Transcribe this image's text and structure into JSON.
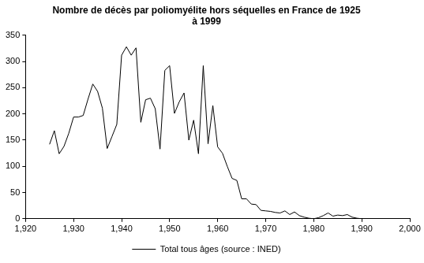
{
  "chart_data": {
    "type": "line",
    "title": [
      "Nombre de décès par poliomyélite hors séquelles en France de 1925",
      "à 1999"
    ],
    "x": [
      1925,
      1926,
      1927,
      1928,
      1929,
      1930,
      1931,
      1932,
      1933,
      1934,
      1935,
      1936,
      1937,
      1938,
      1939,
      1940,
      1941,
      1942,
      1943,
      1944,
      1945,
      1946,
      1947,
      1948,
      1949,
      1950,
      1951,
      1952,
      1953,
      1954,
      1955,
      1956,
      1957,
      1958,
      1959,
      1960,
      1961,
      1962,
      1963,
      1964,
      1965,
      1966,
      1967,
      1968,
      1969,
      1970,
      1971,
      1972,
      1973,
      1974,
      1975,
      1976,
      1977,
      1978,
      1979,
      1980,
      1981,
      1982,
      1983,
      1984,
      1985,
      1986,
      1987,
      1988,
      1989,
      1990,
      1991,
      1992,
      1993,
      1994,
      1995,
      1996,
      1997,
      1998,
      1999
    ],
    "series": [
      {
        "name": "Total tous âges (source : INED)",
        "color": "#000000",
        "line_style": "solid",
        "marker": "none",
        "values": [
          142,
          168,
          124,
          138,
          163,
          194,
          194,
          197,
          228,
          257,
          243,
          211,
          134,
          157,
          180,
          312,
          328,
          312,
          326,
          184,
          227,
          230,
          210,
          133,
          283,
          292,
          201,
          223,
          240,
          150,
          188,
          124,
          292,
          143,
          216,
          137,
          125,
          100,
          77,
          73,
          38,
          38,
          28,
          27,
          16,
          15,
          14,
          12,
          11,
          15,
          8,
          13,
          6,
          3,
          1,
          0,
          2,
          6,
          11,
          5,
          7,
          6,
          8,
          3,
          1,
          0,
          0,
          0,
          0,
          0,
          0,
          0,
          0,
          0,
          0
        ]
      }
    ],
    "xlim": [
      1920,
      2000
    ],
    "xticks": [
      1920,
      1930,
      1940,
      1950,
      1960,
      1970,
      1980,
      1990,
      2000
    ],
    "ylim": [
      0,
      350
    ],
    "yticks": [
      0,
      50,
      100,
      150,
      200,
      250,
      300,
      350
    ],
    "grid": false,
    "legend": "bottom"
  }
}
